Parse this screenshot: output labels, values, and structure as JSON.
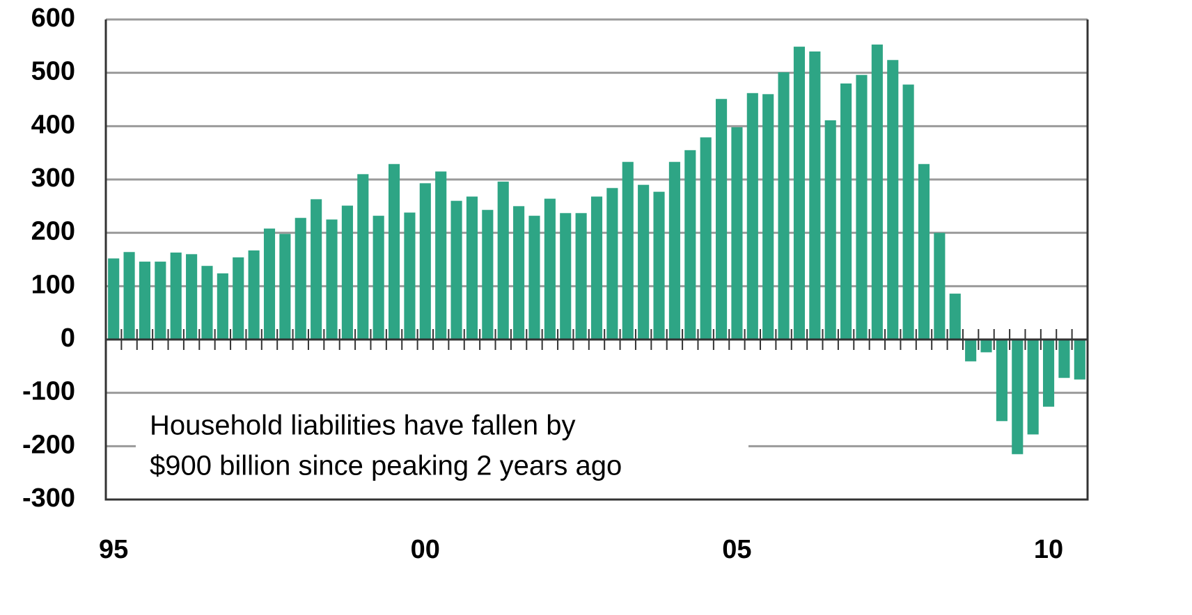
{
  "chart_data": {
    "type": "bar",
    "annotation_lines": [
      "Household liabilities have fallen by",
      "$900 billion since peaking 2 years ago"
    ],
    "categories": [
      "95",
      null,
      null,
      null,
      null,
      null,
      null,
      null,
      null,
      null,
      null,
      null,
      null,
      null,
      null,
      null,
      null,
      null,
      null,
      null,
      "00",
      null,
      null,
      null,
      null,
      null,
      null,
      null,
      null,
      null,
      null,
      null,
      null,
      null,
      null,
      null,
      null,
      null,
      null,
      null,
      "05",
      null,
      null,
      null,
      null,
      null,
      null,
      null,
      null,
      null,
      null,
      null,
      null,
      null,
      null,
      null,
      null,
      null,
      null,
      null,
      "10",
      null,
      null
    ],
    "values": [
      152,
      164,
      146,
      146,
      163,
      160,
      138,
      124,
      154,
      167,
      208,
      198,
      228,
      263,
      225,
      251,
      310,
      232,
      329,
      238,
      293,
      315,
      260,
      268,
      243,
      296,
      250,
      232,
      264,
      237,
      237,
      268,
      284,
      333,
      290,
      277,
      333,
      355,
      379,
      451,
      398,
      462,
      460,
      501,
      549,
      540,
      411,
      480,
      496,
      553,
      524,
      478,
      329,
      200,
      86,
      -41,
      -24,
      -153,
      -215,
      -178,
      -126,
      -72,
      -75
    ],
    "color": "#2ea585",
    "ylim": [
      -300,
      600
    ],
    "yticks": [
      -300,
      -200,
      -100,
      0,
      100,
      200,
      300,
      400,
      500,
      600
    ],
    "grid": true
  }
}
